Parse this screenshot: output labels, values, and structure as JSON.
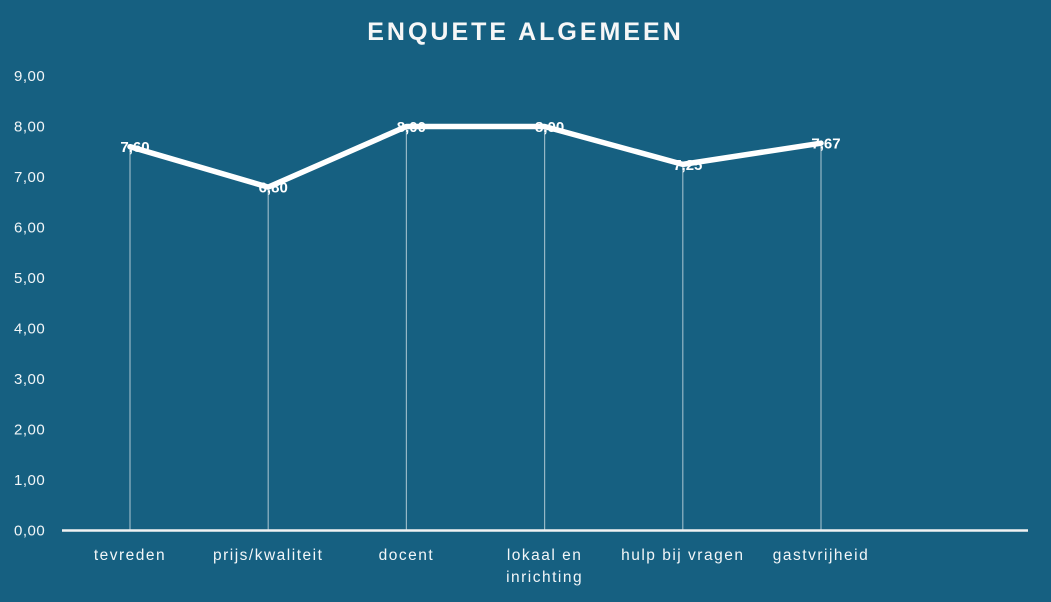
{
  "chart_data": {
    "type": "line",
    "title": "ENQUETE ALGEMEEN",
    "categories": [
      "tevreden",
      "prijs/kwaliteit",
      "docent",
      "lokaal en\ninrichting",
      "hulp bij vragen",
      "gastvrijheid"
    ],
    "values": [
      7.6,
      6.8,
      8.0,
      8.0,
      7.25,
      7.67
    ],
    "value_labels": [
      "7,60",
      "6,80",
      "8,00",
      "8,00",
      "7,25",
      "7,67"
    ],
    "ylim": [
      0,
      9
    ],
    "ytick_step": 1,
    "ytick_labels": [
      "0,00",
      "1,00",
      "2,00",
      "3,00",
      "4,00",
      "5,00",
      "6,00",
      "7,00",
      "8,00",
      "9,00"
    ],
    "xlabel": "",
    "ylabel": "",
    "grid": false,
    "legend": false,
    "markers": "none",
    "data_label_position": "center",
    "drop_lines": true
  },
  "colors": {
    "background": "#166081",
    "line": "#FFFFFF",
    "text": "#F2F6F8",
    "data_label": "#FFFFFF",
    "axis_line": "#F0F2F3",
    "drop_line": "rgba(255,255,255,0.55)"
  }
}
